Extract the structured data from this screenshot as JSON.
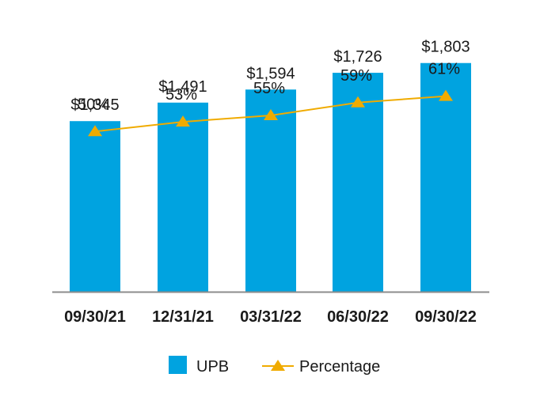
{
  "chart_data": {
    "type": "bar",
    "categories": [
      "09/30/21",
      "12/31/21",
      "03/31/22",
      "06/30/22",
      "09/30/22"
    ],
    "series": [
      {
        "name": "UPB",
        "type": "bar",
        "values": [
          1345,
          1491,
          1594,
          1726,
          1803
        ],
        "labels": [
          "$1,345",
          "$1,491",
          "$1,594",
          "$1,726",
          "$1,803"
        ],
        "color": "#00A3E0"
      },
      {
        "name": "Percentage",
        "type": "line",
        "values": [
          50,
          53,
          55,
          59,
          61
        ],
        "labels": [
          "50%",
          "53%",
          "55%",
          "59%",
          "61%"
        ],
        "color": "#F0AB00",
        "marker": "triangle"
      }
    ],
    "ylim_bars": [
      0,
      2300
    ],
    "ylim_line": [
      0,
      91
    ],
    "grid": false,
    "legend": "bottom-center",
    "axis_color": "#8c8c8c"
  }
}
